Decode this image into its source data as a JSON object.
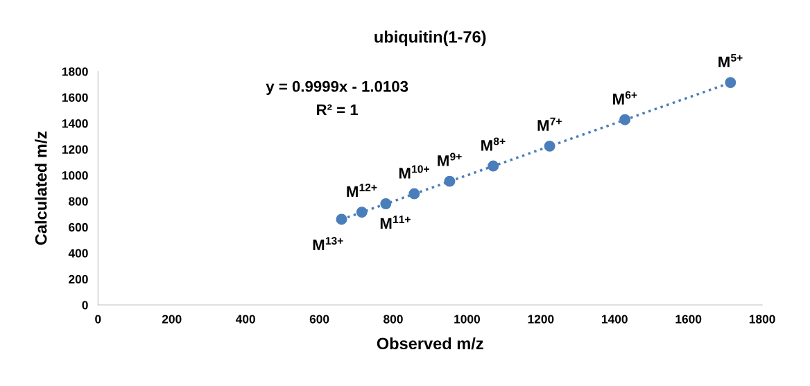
{
  "chart_data": {
    "type": "scatter",
    "title": "ubiquitin(1-76)",
    "xlabel": "Observed m/z",
    "ylabel": "Calculated m/z",
    "xlim": [
      0,
      1800
    ],
    "ylim": [
      0,
      1800
    ],
    "xticks": [
      0,
      200,
      400,
      600,
      800,
      1000,
      1200,
      1400,
      1600,
      1800
    ],
    "yticks": [
      0,
      200,
      400,
      600,
      800,
      1000,
      1200,
      1400,
      1600,
      1800
    ],
    "grid": false,
    "legend": false,
    "series": [
      {
        "marker": "circle",
        "color": "#4a7ebb",
        "x": [
          1714,
          1428,
          1224,
          1071,
          953,
          857,
          780,
          715,
          660
        ],
        "values": [
          1714,
          1428,
          1224,
          1071,
          953,
          857,
          780,
          715,
          660
        ]
      },
      {
        "type": "line",
        "color": "#4a7ebb",
        "line_style": "dotted",
        "marker": "none",
        "x": [
          660,
          1714
        ],
        "values": [
          659,
          1713
        ]
      }
    ],
    "annotations": [
      "y = 0.9999x - 1.0103",
      "R² = 1",
      {
        "text": "M$^{5+}$",
        "x": 1714,
        "y": 1714
      },
      {
        "text": "M$^{6+}$",
        "x": 1428,
        "y": 1428
      },
      {
        "text": "M$^{7+}$",
        "x": 1224,
        "y": 1224
      },
      {
        "text": "M$^{8+}$",
        "x": 1071,
        "y": 1071
      },
      {
        "text": "M$^{9+}$",
        "x": 953,
        "y": 953
      },
      {
        "text": "M$^{10+}$",
        "x": 857,
        "y": 857
      },
      {
        "text": "M$^{11+}$",
        "x": 780,
        "y": 780
      },
      {
        "text": "M$^{12+}$",
        "x": 715,
        "y": 715
      },
      {
        "text": "M$^{13+}$",
        "x": 660,
        "y": 660
      }
    ]
  }
}
